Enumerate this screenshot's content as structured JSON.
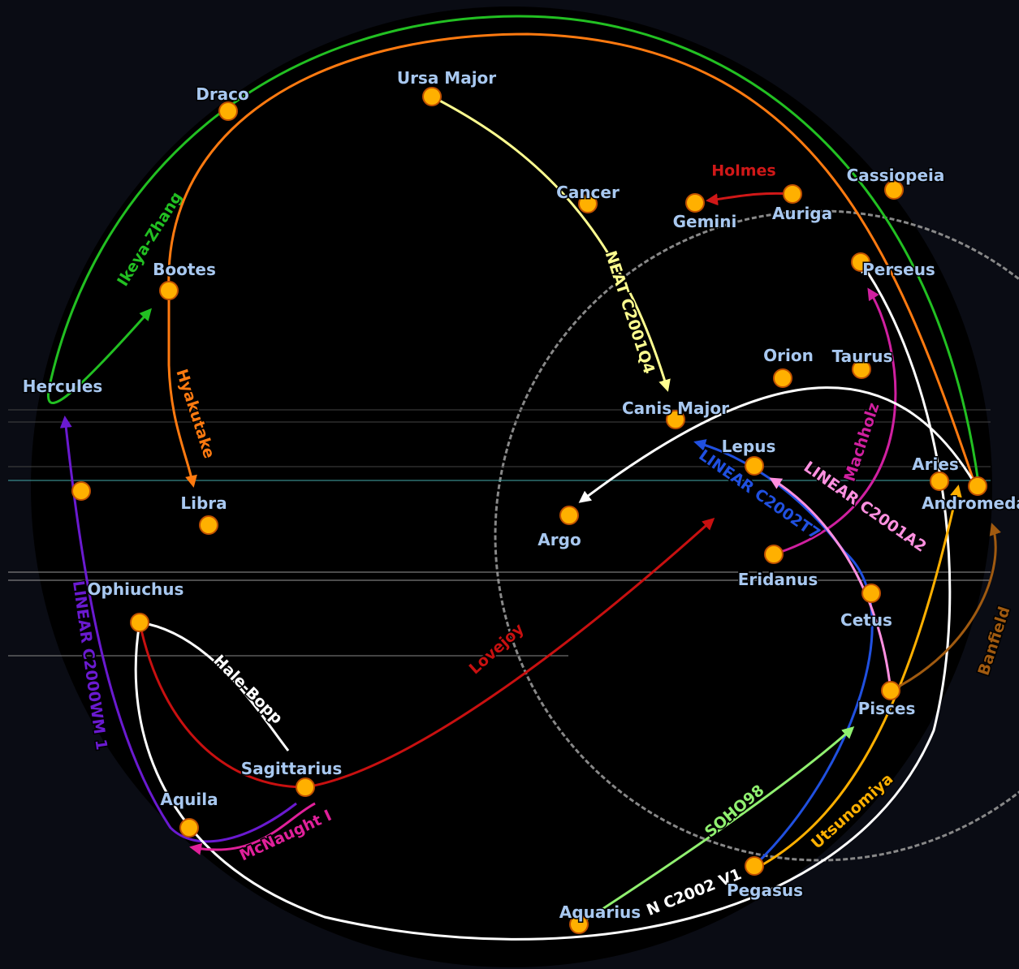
{
  "nodes": [
    {
      "label": "Draco"
    },
    {
      "label": "Ursa Major"
    },
    {
      "label": "Cancer"
    },
    {
      "label": "Gemini"
    },
    {
      "label": "Auriga"
    },
    {
      "label": "Cassiopeia"
    },
    {
      "label": "Perseus"
    },
    {
      "label": "Bootes"
    },
    {
      "label": "Hercules"
    },
    {
      "label": "Orion"
    },
    {
      "label": "Taurus"
    },
    {
      "label": "Canis Major"
    },
    {
      "label": "Lepus"
    },
    {
      "label": "Aries"
    },
    {
      "label": "Andromeda"
    },
    {
      "label": "Argo"
    },
    {
      "label": "Libra"
    },
    {
      "label": "Eridanus"
    },
    {
      "label": "Cetus"
    },
    {
      "label": "Ophiuchus"
    },
    {
      "label": "Pisces"
    },
    {
      "label": "Sagittarius"
    },
    {
      "label": "Aquila"
    },
    {
      "label": "Pegasus"
    },
    {
      "label": "Aquarius"
    }
  ],
  "comets": [
    {
      "name": "Ikeya-Zhang",
      "color": "#22c022"
    },
    {
      "name": "Hyakutake",
      "color": "#ff7a10"
    },
    {
      "name": "Holmes",
      "color": "#d01818"
    },
    {
      "name": "NEAT C2001Q4",
      "color": "#ffff90"
    },
    {
      "name": "Machholz",
      "color": "#d020a0"
    },
    {
      "name": "LINEAR C2002T7",
      "color": "#2050e0"
    },
    {
      "name": "LINEAR C2001A2",
      "color": "#ff90e0"
    },
    {
      "name": "LINEAR C2000WM 1",
      "color": "#6a1ad0"
    },
    {
      "name": "Lovejoy",
      "color": "#c81010"
    },
    {
      "name": "Hale-Bopp",
      "color": "#ffffff"
    },
    {
      "name": "McNaught I",
      "color": "#e0209a"
    },
    {
      "name": "SOHO98",
      "color": "#90f070"
    },
    {
      "name": "Utsunomiya",
      "color": "#ffb000"
    },
    {
      "name": "N C2002 V1",
      "color": "#ffffff"
    },
    {
      "name": "Banfield",
      "color": "#a05a10"
    }
  ]
}
